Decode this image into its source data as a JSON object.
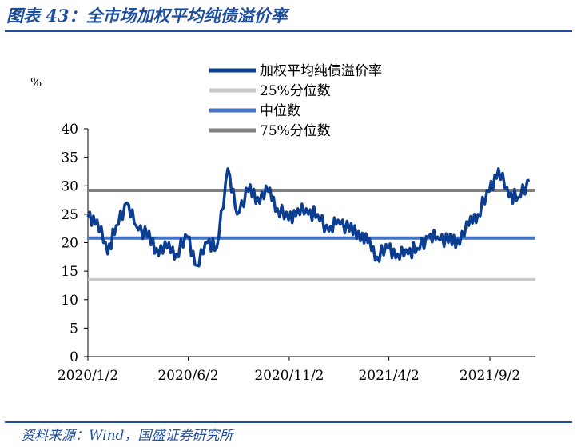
{
  "figure": {
    "title": "图表 43：全市场加权平均纯债溢价率",
    "source": "资料来源：Wind，国盛证券研究所"
  },
  "chart_data": {
    "type": "line",
    "ylabel": "%",
    "ylim": [
      0,
      40
    ],
    "yticks": [
      0,
      5,
      10,
      15,
      20,
      25,
      30,
      35,
      40
    ],
    "xticks": [
      "2020/1/2",
      "2020/6/2",
      "2020/11/2",
      "2021/4/2",
      "2021/9/2"
    ],
    "legend_position": "top",
    "series": [
      {
        "name": "加权平均纯债溢价率",
        "color": "#0b3d91",
        "x": [
          "2020/1/2",
          "2020/1/16",
          "2020/2/1",
          "2020/2/14",
          "2020/3/1",
          "2020/3/15",
          "2020/4/1",
          "2020/4/15",
          "2020/5/1",
          "2020/5/15",
          "2020/6/1",
          "2020/6/15",
          "2020/7/1",
          "2020/7/15",
          "2020/8/1",
          "2020/8/15",
          "2020/9/1",
          "2020/9/15",
          "2020/10/1",
          "2020/10/15",
          "2020/11/1",
          "2020/11/15",
          "2020/12/1",
          "2020/12/15",
          "2021/1/1",
          "2021/1/15",
          "2021/2/1",
          "2021/2/15",
          "2021/3/1",
          "2021/3/15",
          "2021/4/1",
          "2021/4/15",
          "2021/5/1",
          "2021/5/15",
          "2021/6/1",
          "2021/6/15",
          "2021/7/1",
          "2021/7/15",
          "2021/8/1",
          "2021/8/15",
          "2021/9/1",
          "2021/9/15",
          "2021/10/1",
          "2021/10/15",
          "2021/11/1"
        ],
        "values": [
          24.5,
          24,
          18,
          23,
          27,
          23,
          21,
          19,
          19,
          18,
          21,
          16,
          20,
          19,
          33,
          25,
          29,
          28,
          29,
          26,
          24,
          26,
          25,
          25,
          22,
          24,
          22,
          22,
          20,
          17.5,
          19,
          18,
          18,
          19,
          21,
          21,
          20,
          20.5,
          23,
          25,
          29,
          33,
          28,
          28,
          31
        ]
      },
      {
        "name": "25%分位数",
        "color": "#c9c9c9",
        "value": 13.5
      },
      {
        "name": "中位数",
        "color": "#4472c4",
        "value": 20.8
      },
      {
        "name": "75%分位数",
        "color": "#7f7f7f",
        "value": 29.2
      }
    ]
  }
}
